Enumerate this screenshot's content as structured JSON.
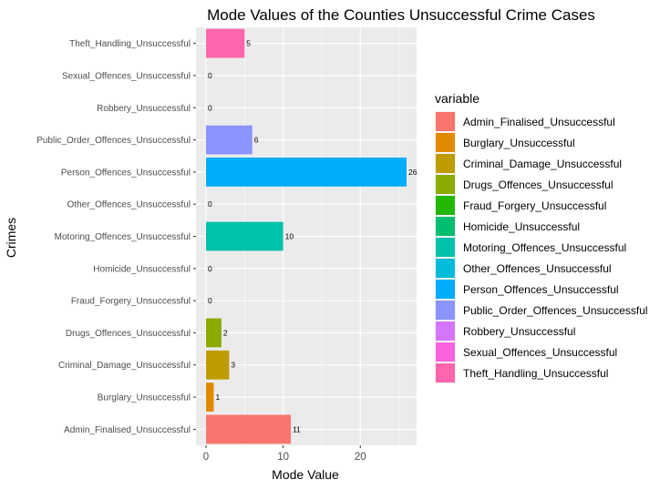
{
  "chart_data": {
    "type": "bar",
    "orientation": "horizontal",
    "title": "Mode Values of the Counties Unsuccessful Crime Cases",
    "xlabel": "Mode Value",
    "ylabel": "Crimes",
    "xlim": [
      -1.3,
      27.3
    ],
    "xticks": [
      0,
      10,
      20
    ],
    "grid": true,
    "legend_position": "right",
    "legend_title": "variable",
    "categories": [
      "Admin_Finalised_Unsuccessful",
      "Burglary_Unsuccessful",
      "Criminal_Damage_Unsuccessful",
      "Drugs_Offences_Unsuccessful",
      "Fraud_Forgery_Unsuccessful",
      "Homicide_Unsuccessful",
      "Motoring_Offences_Unsuccessful",
      "Other_Offences_Unsuccessful",
      "Person_Offences_Unsuccessful",
      "Public_Order_Offences_Unsuccessful",
      "Robbery_Unsuccessful",
      "Sexual_Offences_Unsuccessful",
      "Theft_Handling_Unsuccessful"
    ],
    "values": [
      11,
      1,
      3,
      2,
      0,
      0,
      10,
      0,
      26,
      6,
      0,
      0,
      5
    ],
    "colors": [
      "#F8766D",
      "#E18A00",
      "#BE9C00",
      "#8CAB00",
      "#24B700",
      "#00BE70",
      "#00C1AB",
      "#00BBDA",
      "#00ACFC",
      "#8B93FF",
      "#D575FE",
      "#F962DD",
      "#FF65AC"
    ]
  }
}
